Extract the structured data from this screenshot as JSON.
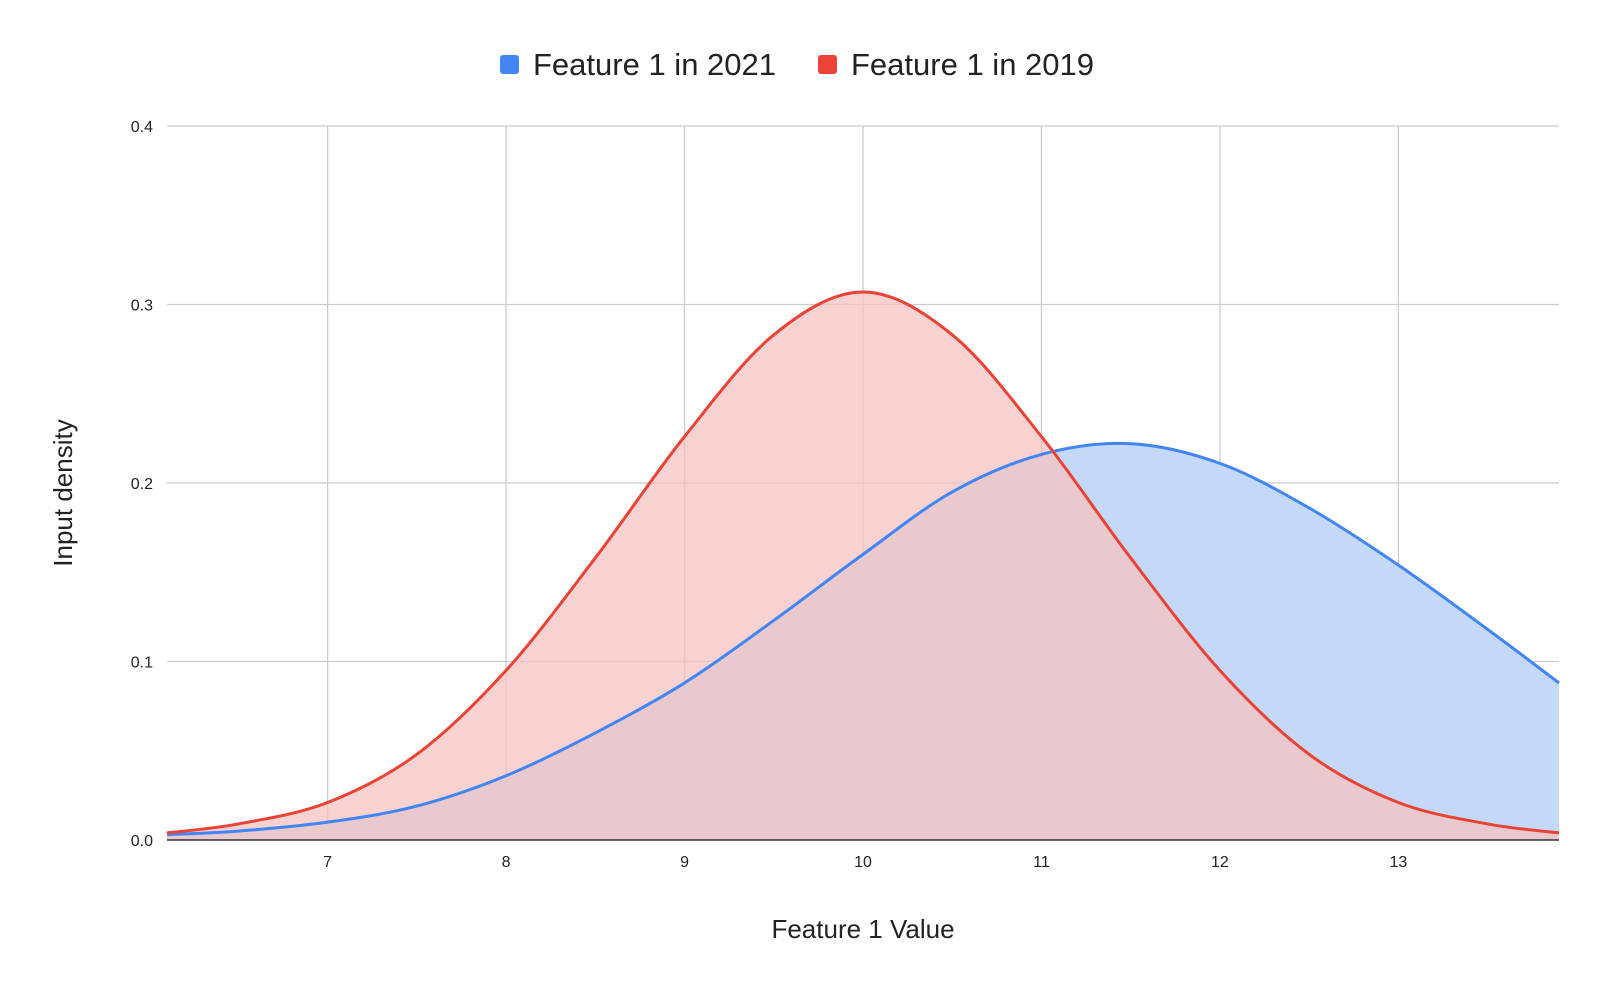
{
  "chart_data": {
    "type": "area",
    "title": "",
    "xlabel": "Feature 1 Value",
    "ylabel": "Input density",
    "xlim": [
      6.1,
      13.9
    ],
    "ylim": [
      0,
      0.4
    ],
    "x_ticks": [
      7,
      8,
      9,
      10,
      11,
      12,
      13
    ],
    "y_ticks": [
      0.0,
      0.1,
      0.2,
      0.3,
      0.4
    ],
    "x_tick_labels": [
      "7",
      "8",
      "9",
      "10",
      "11",
      "12",
      "13"
    ],
    "y_tick_labels": [
      "0.0",
      "0.1",
      "0.2",
      "0.3",
      "0.4"
    ],
    "grid": true,
    "legend_position": "top",
    "x": [
      6.1,
      6.5,
      7,
      7.5,
      8,
      8.5,
      9,
      9.5,
      10,
      10.5,
      11,
      11.5,
      12,
      12.5,
      13,
      13.5,
      13.9
    ],
    "series": [
      {
        "name": "Feature 1 in 2021",
        "color": "#4285f4",
        "fill": "#c4d9f8",
        "values": [
          0.003,
          0.005,
          0.01,
          0.019,
          0.036,
          0.06,
          0.088,
          0.123,
          0.16,
          0.195,
          0.216,
          0.222,
          0.211,
          0.186,
          0.154,
          0.118,
          0.088
        ]
      },
      {
        "name": "Feature 1 in 2019",
        "color": "#ea4335",
        "fill": "#f6c3c0",
        "values": [
          0.004,
          0.009,
          0.021,
          0.048,
          0.095,
          0.158,
          0.226,
          0.283,
          0.307,
          0.283,
          0.226,
          0.158,
          0.095,
          0.048,
          0.021,
          0.009,
          0.004
        ]
      }
    ]
  }
}
